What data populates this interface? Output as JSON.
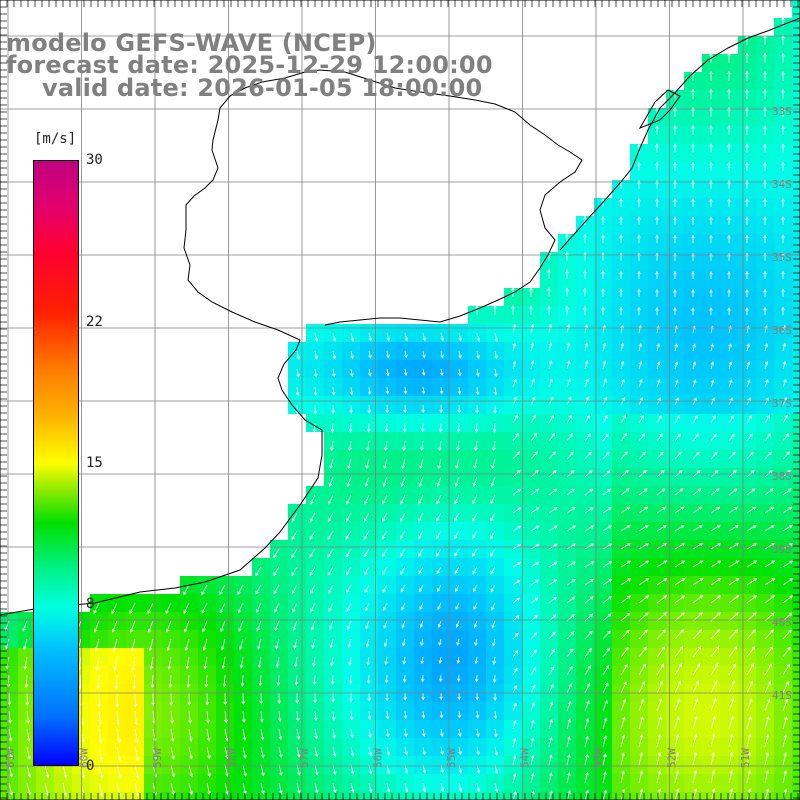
{
  "header": {
    "line1": "modelo GEFS-WAVE (NCEP)",
    "line2": "forecast date: 2025-12-29 12:00:00",
    "line3": "valid date: 2026-01-05 18:00:00"
  },
  "colorbar": {
    "units": "[m/s]",
    "ticks": [
      {
        "label": "30",
        "value": 30
      },
      {
        "label": "22",
        "value": 22
      },
      {
        "label": "15",
        "value": 15
      },
      {
        "label": "8",
        "value": 8
      },
      {
        "label": "0",
        "value": 0
      }
    ],
    "min": 0,
    "max": 30
  },
  "map": {
    "lat_labels": [
      "33S",
      "34S",
      "35S",
      "36S",
      "37S",
      "38S",
      "39S",
      "40S",
      "41S"
    ],
    "lon_labels": [
      "61W",
      "60W",
      "59W",
      "58W",
      "57W",
      "56W",
      "55W",
      "54W",
      "53W",
      "52W",
      "51W"
    ],
    "colors": {
      "land": "#ffffff",
      "grid": "#808080",
      "coast": "#000000",
      "arrow": "#ffffff"
    }
  }
}
